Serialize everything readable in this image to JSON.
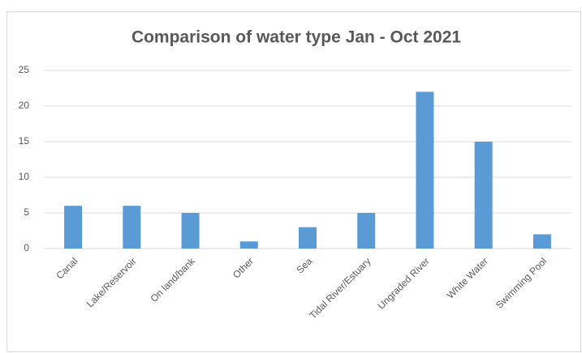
{
  "chart_data": {
    "type": "bar",
    "title": "Comparison of water type Jan - Oct 2021",
    "categories": [
      "Canal",
      "Lake/Reservoir",
      "On land/bank",
      "Other",
      "Sea",
      "Tidal River/Estuary",
      "Ungraded River",
      "White Water",
      "Swimming Pool"
    ],
    "values": [
      6,
      6,
      5,
      1,
      3,
      5,
      22,
      15,
      2
    ],
    "color": "#5b9bd5",
    "ylim": [
      0,
      25
    ],
    "yticks": [
      0,
      5,
      10,
      15,
      20,
      25
    ],
    "grid": true
  }
}
